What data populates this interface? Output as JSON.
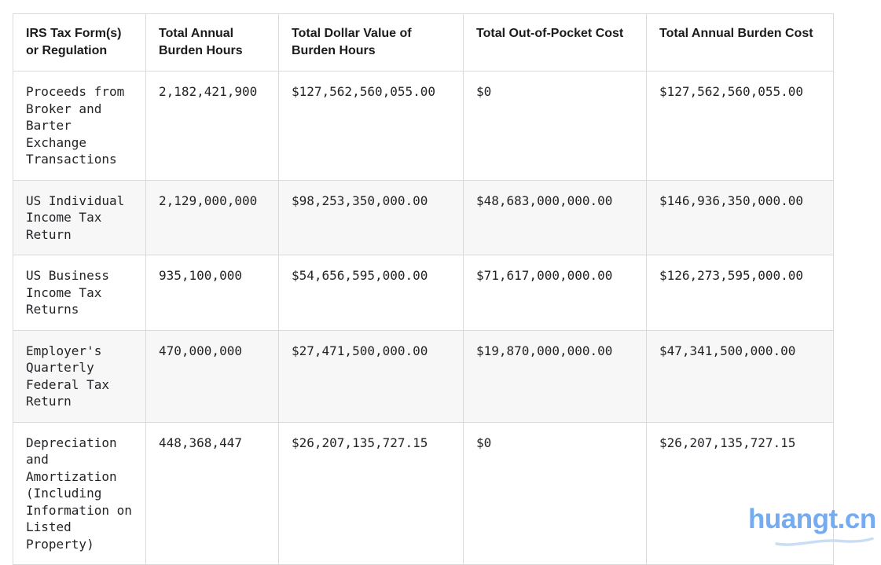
{
  "table": {
    "columns": [
      "IRS Tax Form(s) or Regulation",
      "Total Annual Burden Hours",
      "Total Dollar Value of Burden Hours",
      "Total Out-of-Pocket Cost",
      "Total Annual Burden Cost"
    ],
    "row_fields": [
      "form",
      "hours",
      "dollar_value",
      "out_of_pocket",
      "annual_burden"
    ],
    "rows": [
      {
        "form": "Proceeds from Broker and Barter Exchange Transactions",
        "hours": "2,182,421,900",
        "dollar_value": "$127,562,560,055.00",
        "out_of_pocket": "$0",
        "annual_burden": "$127,562,560,055.00"
      },
      {
        "form": "US Individual Income Tax Return",
        "hours": "2,129,000,000",
        "dollar_value": "$98,253,350,000.00",
        "out_of_pocket": "$48,683,000,000.00",
        "annual_burden": "$146,936,350,000.00"
      },
      {
        "form": "US Business Income Tax Returns",
        "hours": "935,100,000",
        "dollar_value": "$54,656,595,000.00",
        "out_of_pocket": "$71,617,000,000.00",
        "annual_burden": "$126,273,595,000.00"
      },
      {
        "form": "Employer's Quarterly Federal Tax Return",
        "hours": "470,000,000",
        "dollar_value": "$27,471,500,000.00",
        "out_of_pocket": "$19,870,000,000.00",
        "annual_burden": "$47,341,500,000.00"
      },
      {
        "form": "Depreciation and Amortization (Including Information on Listed Property)",
        "hours": "448,368,447",
        "dollar_value": "$26,207,135,727.15",
        "out_of_pocket": "$0",
        "annual_burden": "$26,207,135,727.15"
      }
    ],
    "colors": {
      "border": "#dadada",
      "alt_row_background": "#f7f7f8",
      "header_text": "#1b1b1d",
      "body_text": "#232427"
    }
  },
  "watermark": {
    "text": "huangt.cn",
    "color": "#74abf1",
    "swoosh_color": "#c9ddf6"
  }
}
